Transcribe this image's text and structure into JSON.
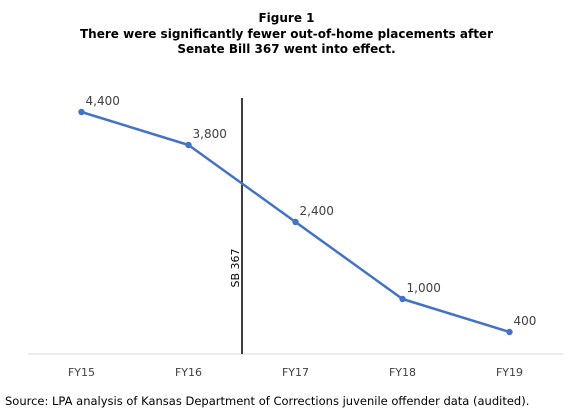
{
  "figure": {
    "label": "Figure 1",
    "title": "There were significantly fewer out-of-home placements after Senate Bill 367 went into effect."
  },
  "source": "Source: LPA analysis of Kansas Department of Corrections juvenile offender data (audited).",
  "chart_data": {
    "type": "line",
    "categories": [
      "FY15",
      "FY16",
      "FY17",
      "FY18",
      "FY19"
    ],
    "values": [
      4400,
      3800,
      2400,
      1000,
      400
    ],
    "data_labels": [
      "4,400",
      "3,800",
      "2,400",
      "1,000",
      "400"
    ],
    "ylim": [
      0,
      5000
    ],
    "grid": false,
    "line_color": "#4472C4",
    "annotation": {
      "text": "SB 367",
      "position": "between FY16 and FY17"
    }
  }
}
